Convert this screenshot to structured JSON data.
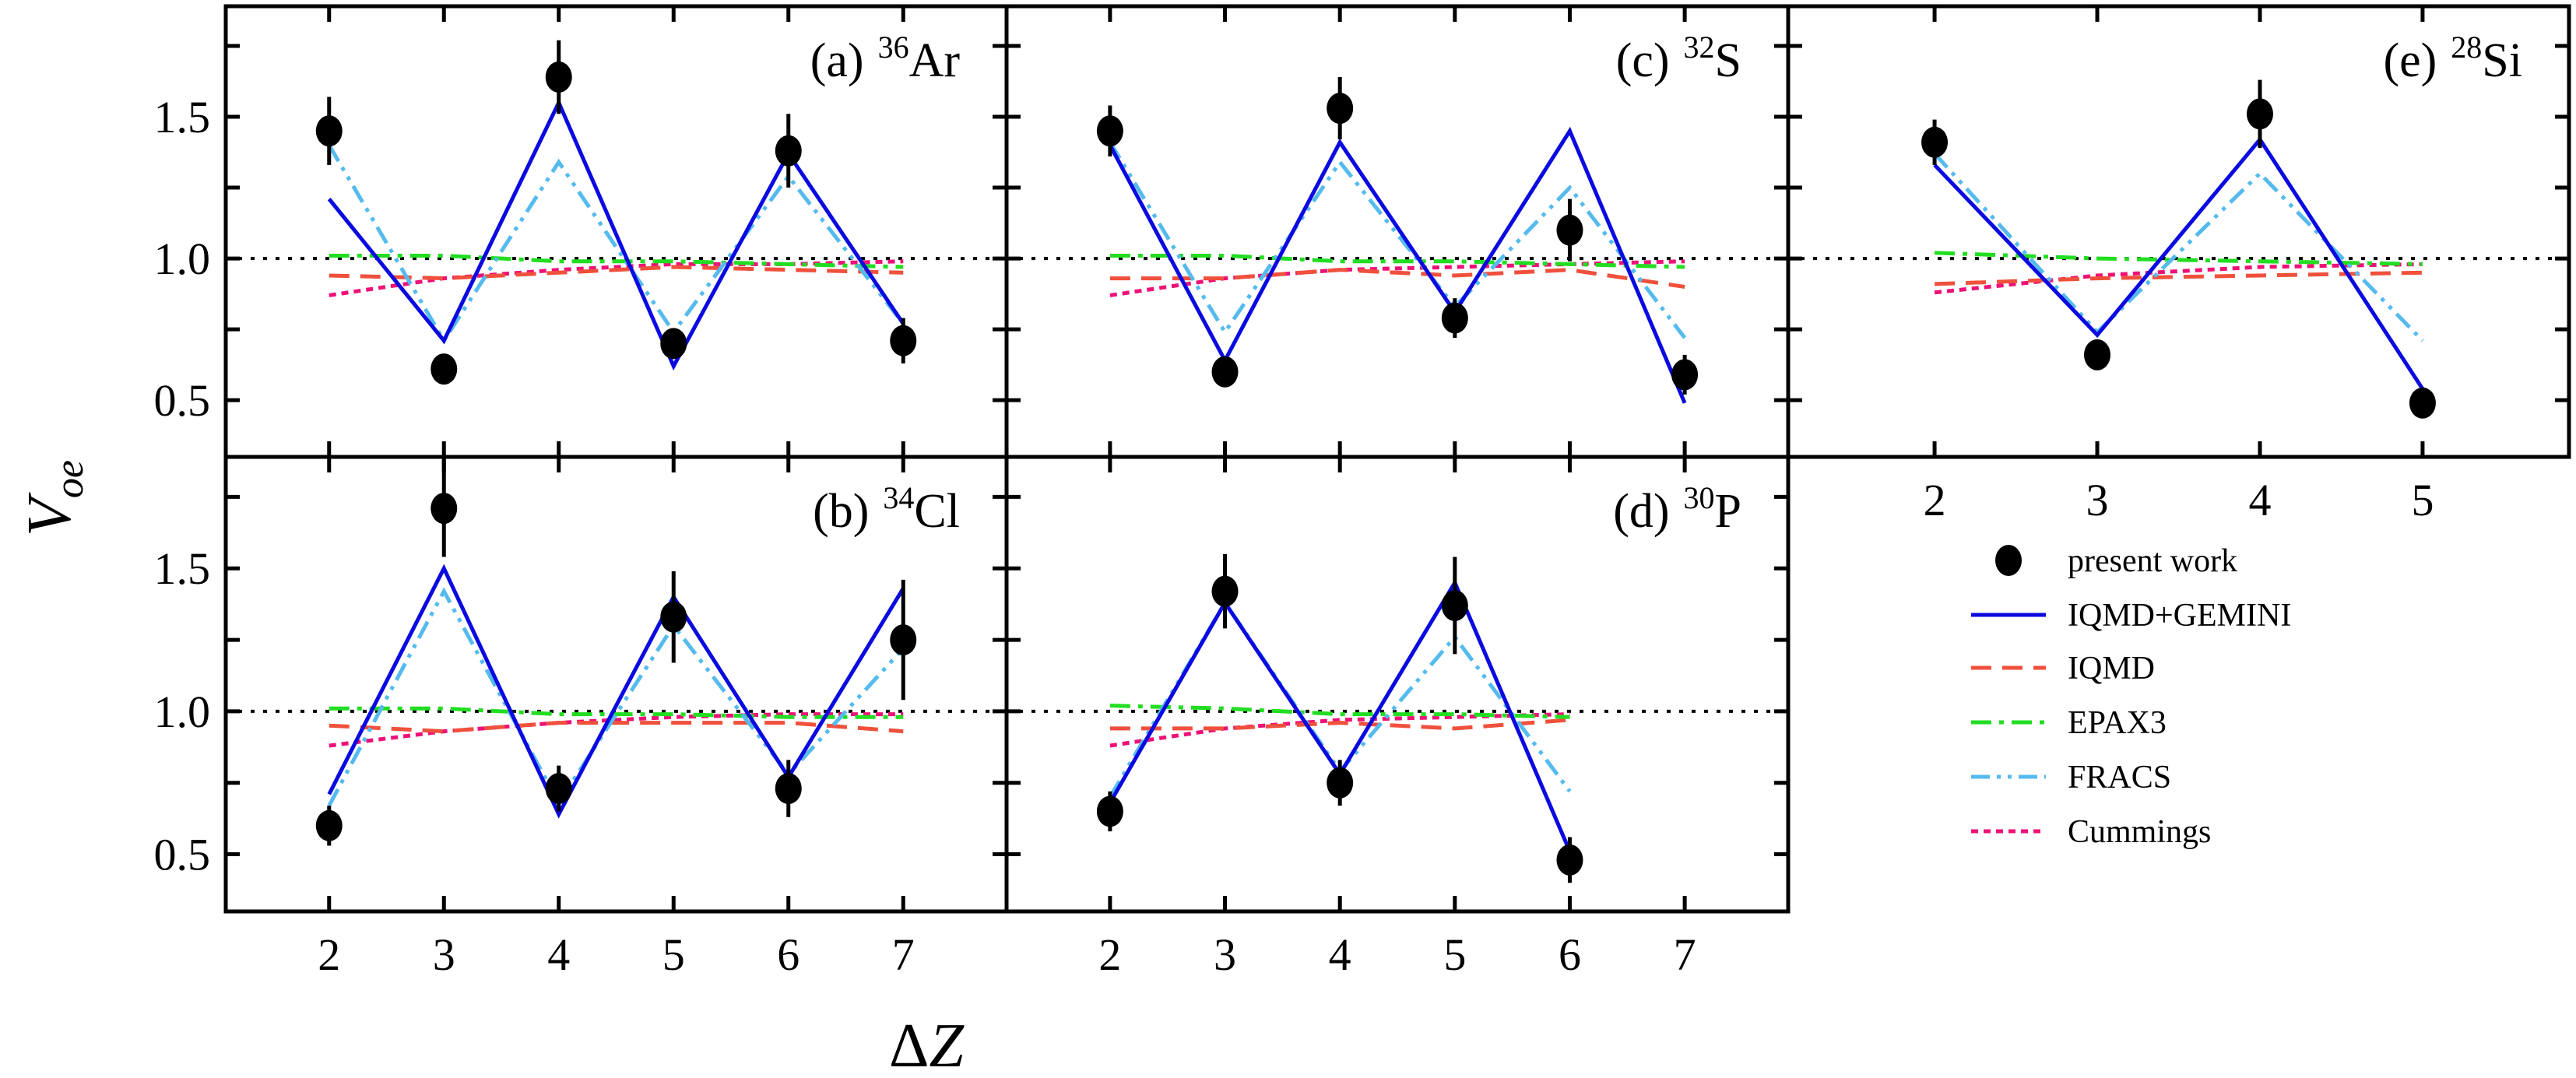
{
  "chart_data": {
    "type": "line",
    "ylabel": "V",
    "ylabel_sub": "oe",
    "xlabel": "ΔZ",
    "xlabel_prefix": "Δ",
    "xlabel_var": "Z",
    "reference_line": 1.0,
    "ylim": [
      0.3,
      1.89
    ],
    "yticks": [
      0.5,
      1.0,
      1.5
    ],
    "ytick_labels": [
      "0.5",
      "1.0",
      "1.5"
    ],
    "grid": false,
    "series_styles": [
      {
        "name": "present work",
        "color": "#000000",
        "kind": "points"
      },
      {
        "name": "IQMD+GEMINI",
        "color": "#0a0ae0",
        "kind": "solid"
      },
      {
        "name": "IQMD",
        "color": "#f0503c",
        "kind": "dashed"
      },
      {
        "name": "EPAX3",
        "color": "#22dd22",
        "kind": "dash-dot"
      },
      {
        "name": "FRACS",
        "color": "#55bbee",
        "kind": "dash-dot-dot"
      },
      {
        "name": "Cummings",
        "color": "#ee1177",
        "kind": "dotted"
      }
    ],
    "legend": {
      "placement": "lower-right",
      "entries": [
        "present work",
        "IQMD+GEMINI",
        "IQMD",
        "EPAX3",
        "FRACS",
        "Cummings"
      ]
    },
    "panels": [
      {
        "id": "a",
        "prefix": "(a)",
        "mass": "36",
        "element": "Ar",
        "xlim": [
          1.1,
          7.9
        ],
        "x": [
          2,
          3,
          4,
          5,
          6,
          7
        ],
        "points": [
          1.45,
          0.61,
          1.64,
          0.7,
          1.38,
          0.71
        ],
        "errors": [
          0.12,
          0.04,
          0.13,
          0.05,
          0.13,
          0.08
        ],
        "IQMD+GEMINI": [
          1.21,
          0.71,
          1.55,
          0.62,
          1.37,
          0.77
        ],
        "IQMD": [
          0.94,
          0.93,
          0.95,
          0.97,
          0.96,
          0.95
        ],
        "EPAX3": [
          1.01,
          1.01,
          0.99,
          0.99,
          0.98,
          0.97
        ],
        "FRACS": [
          1.4,
          0.71,
          1.34,
          0.74,
          1.29,
          0.77
        ],
        "Cummings": [
          0.87,
          0.93,
          0.96,
          0.98,
          0.98,
          0.99
        ]
      },
      {
        "id": "b",
        "prefix": "(b)",
        "mass": "34",
        "element": "Cl",
        "xlim": [
          1.1,
          7.9
        ],
        "x": [
          2,
          3,
          4,
          5,
          6,
          7
        ],
        "xtick_labels": [
          "2",
          "3",
          "4",
          "5",
          "6",
          "7"
        ],
        "points": [
          0.6,
          1.71,
          0.73,
          1.33,
          0.73,
          1.25
        ],
        "errors": [
          0.07,
          0.17,
          0.08,
          0.16,
          0.1,
          0.21
        ],
        "IQMD+GEMINI": [
          0.71,
          1.5,
          0.64,
          1.4,
          0.77,
          1.43
        ],
        "IQMD": [
          0.95,
          0.93,
          0.96,
          0.96,
          0.96,
          0.93
        ],
        "EPAX3": [
          1.01,
          1.01,
          0.99,
          0.99,
          0.98,
          0.98
        ],
        "FRACS": [
          0.67,
          1.42,
          0.68,
          1.3,
          0.78,
          1.22
        ],
        "Cummings": [
          0.88,
          0.93,
          0.96,
          0.98,
          0.99,
          0.99
        ]
      },
      {
        "id": "c",
        "prefix": "(c)",
        "mass": "32",
        "element": "S",
        "xlim": [
          1.1,
          7.9
        ],
        "x": [
          2,
          3,
          4,
          5,
          6,
          7
        ],
        "points": [
          1.45,
          0.6,
          1.53,
          0.79,
          1.1,
          0.59
        ],
        "errors": [
          0.09,
          0.04,
          0.11,
          0.07,
          0.11,
          0.07
        ],
        "IQMD+GEMINI": [
          1.4,
          0.64,
          1.41,
          0.81,
          1.45,
          0.49
        ],
        "IQMD": [
          0.93,
          0.93,
          0.96,
          0.94,
          0.96,
          0.9
        ],
        "EPAX3": [
          1.01,
          1.01,
          0.99,
          0.99,
          0.98,
          0.97
        ],
        "FRACS": [
          1.41,
          0.74,
          1.34,
          0.83,
          1.25,
          0.72
        ],
        "Cummings": [
          0.87,
          0.93,
          0.96,
          0.97,
          0.98,
          0.99
        ]
      },
      {
        "id": "d",
        "prefix": "(d)",
        "mass": "30",
        "element": "P",
        "xlim": [
          1.1,
          7.9
        ],
        "x": [
          2,
          3,
          4,
          5,
          6
        ],
        "xticks": [
          2,
          3,
          4,
          5,
          6,
          7
        ],
        "xtick_labels": [
          "2",
          "3",
          "4",
          "5",
          "6",
          "7"
        ],
        "points": [
          0.65,
          1.42,
          0.75,
          1.37,
          0.48
        ],
        "errors": [
          0.07,
          0.13,
          0.08,
          0.17,
          0.08
        ],
        "IQMD+GEMINI": [
          0.68,
          1.38,
          0.78,
          1.45,
          0.51
        ],
        "IQMD": [
          0.94,
          0.94,
          0.96,
          0.94,
          0.97
        ],
        "EPAX3": [
          1.02,
          1.01,
          0.99,
          0.99,
          0.98
        ],
        "FRACS": [
          0.7,
          1.38,
          0.79,
          1.26,
          0.72
        ],
        "Cummings": [
          0.88,
          0.94,
          0.97,
          0.98,
          0.99
        ]
      },
      {
        "id": "e",
        "prefix": "(e)",
        "mass": "28",
        "element": "Si",
        "xlim": [
          1.1,
          5.9
        ],
        "x": [
          2,
          3,
          4,
          5
        ],
        "xtick_labels": [
          "2",
          "3",
          "4",
          "5"
        ],
        "points": [
          1.41,
          0.66,
          1.51,
          0.49
        ],
        "errors": [
          0.08,
          0.04,
          0.12,
          0.04
        ],
        "IQMD+GEMINI": [
          1.33,
          0.73,
          1.42,
          0.54
        ],
        "IQMD": [
          0.91,
          0.93,
          0.94,
          0.95
        ],
        "EPAX3": [
          1.02,
          1.0,
          0.99,
          0.98
        ],
        "FRACS": [
          1.37,
          0.74,
          1.3,
          0.71
        ],
        "Cummings": [
          0.88,
          0.94,
          0.97,
          0.98
        ]
      }
    ]
  }
}
